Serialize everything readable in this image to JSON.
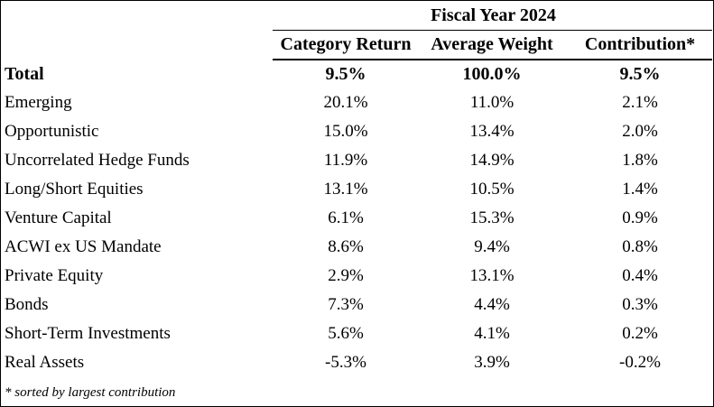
{
  "table": {
    "period": "Fiscal Year 2024",
    "columns": [
      "Category Return",
      "Average Weight",
      "Contribution*"
    ],
    "total": {
      "label": "Total",
      "return": "9.5%",
      "weight": "100.0%",
      "contribution": "9.5%"
    },
    "rows": [
      {
        "label": "Emerging",
        "return": "20.1%",
        "weight": "11.0%",
        "contribution": "2.1%"
      },
      {
        "label": "Opportunistic",
        "return": "15.0%",
        "weight": "13.4%",
        "contribution": "2.0%"
      },
      {
        "label": "Uncorrelated Hedge Funds",
        "return": "11.9%",
        "weight": "14.9%",
        "contribution": "1.8%"
      },
      {
        "label": "Long/Short Equities",
        "return": "13.1%",
        "weight": "10.5%",
        "contribution": "1.4%"
      },
      {
        "label": "Venture Capital",
        "return": "6.1%",
        "weight": "15.3%",
        "contribution": "0.9%"
      },
      {
        "label": "ACWI ex US Mandate",
        "return": "8.6%",
        "weight": "9.4%",
        "contribution": "0.8%"
      },
      {
        "label": "Private Equity",
        "return": "2.9%",
        "weight": "13.1%",
        "contribution": "0.4%"
      },
      {
        "label": "Bonds",
        "return": "7.3%",
        "weight": "4.4%",
        "contribution": "0.3%"
      },
      {
        "label": "Short-Term Investments",
        "return": "5.6%",
        "weight": "4.1%",
        "contribution": "0.2%"
      },
      {
        "label": "Real Assets",
        "return": "-5.3%",
        "weight": "3.9%",
        "contribution": "-0.2%"
      }
    ],
    "footnote": "* sorted by largest contribution"
  }
}
